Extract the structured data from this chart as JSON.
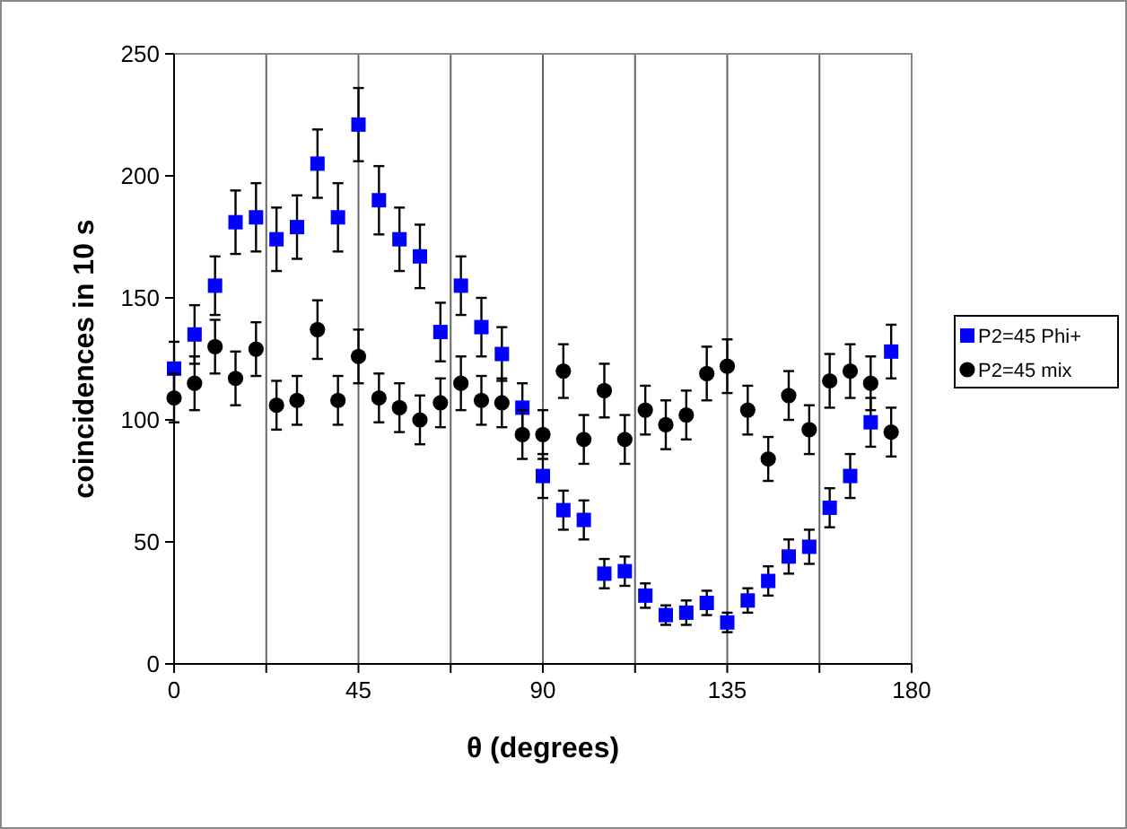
{
  "chart_data": {
    "type": "scatter",
    "xlabel": "θ (degrees)",
    "ylabel": "coincidences in 10 s",
    "x": [
      0,
      5,
      10,
      15,
      20,
      25,
      30,
      35,
      40,
      45,
      50,
      55,
      60,
      65,
      70,
      75,
      80,
      85,
      90,
      95,
      100,
      105,
      110,
      115,
      120,
      125,
      130,
      135,
      140,
      145,
      150,
      155,
      160,
      165,
      170,
      175
    ],
    "series": [
      {
        "name": "P2=45 Phi+",
        "color": "#0000ff",
        "marker": "square",
        "values": [
          121,
          135,
          155,
          181,
          183,
          174,
          179,
          205,
          183,
          221,
          190,
          174,
          167,
          136,
          155,
          138,
          127,
          105,
          77,
          63,
          59,
          37,
          38,
          28,
          20,
          21,
          25,
          17,
          26,
          34,
          44,
          48,
          64,
          77,
          99,
          128
        ],
        "errors": [
          11,
          12,
          12,
          13,
          14,
          13,
          13,
          14,
          14,
          15,
          14,
          13,
          13,
          12,
          12,
          12,
          11,
          10,
          9,
          8,
          8,
          6,
          6,
          5,
          4,
          5,
          5,
          4,
          5,
          6,
          7,
          7,
          8,
          9,
          10,
          11
        ]
      },
      {
        "name": "P2=45 mix",
        "color": "#000000",
        "marker": "circle",
        "values": [
          109,
          115,
          130,
          117,
          129,
          106,
          108,
          137,
          108,
          126,
          109,
          105,
          100,
          107,
          115,
          108,
          107,
          94,
          94,
          120,
          92,
          112,
          92,
          104,
          98,
          102,
          119,
          122,
          104,
          84,
          110,
          96,
          116,
          120,
          115,
          95
        ],
        "errors": [
          10,
          11,
          11,
          11,
          11,
          10,
          10,
          12,
          10,
          11,
          10,
          10,
          10,
          10,
          11,
          10,
          10,
          10,
          10,
          11,
          10,
          11,
          10,
          10,
          10,
          10,
          11,
          11,
          10,
          9,
          10,
          10,
          11,
          11,
          11,
          10
        ]
      }
    ],
    "xlim": [
      0,
      180
    ],
    "xticks": [
      0,
      {
        "value": 22.5,
        "label": null
      },
      45,
      {
        "value": 67.5,
        "label": null
      },
      90,
      {
        "value": 112.5,
        "label": null
      },
      135,
      {
        "value": 157.5,
        "label": null
      },
      180
    ],
    "ylim": [
      0,
      250
    ],
    "yticks": [
      0,
      50,
      100,
      150,
      200,
      250
    ],
    "grid": "x",
    "legend": "right"
  }
}
